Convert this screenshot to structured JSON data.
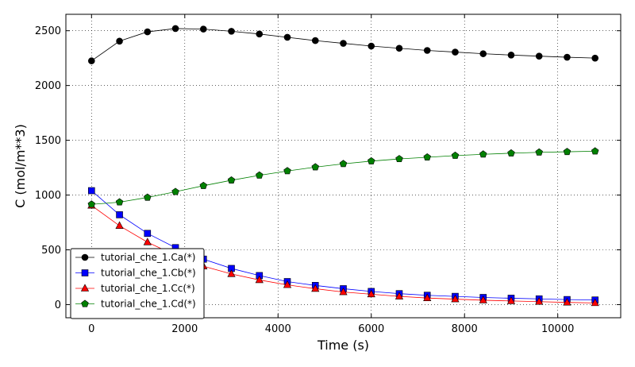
{
  "chart_data": {
    "type": "line",
    "xlabel": "Time (s)",
    "ylabel": "C (mol/m**3)",
    "xlim": [
      -550,
      11350
    ],
    "ylim": [
      -120,
      2650
    ],
    "xticks": [
      0,
      2000,
      4000,
      6000,
      8000,
      10000
    ],
    "yticks": [
      0,
      500,
      1000,
      1500,
      2000,
      2500
    ],
    "grid": true,
    "legend_position": "lower-left",
    "x": [
      0,
      600,
      1200,
      1800,
      2400,
      3000,
      3600,
      4200,
      4800,
      5400,
      6000,
      6600,
      7200,
      7800,
      8400,
      9000,
      9600,
      10200,
      10800
    ],
    "series": [
      {
        "name": "tutorial_che_1.Ca(*)",
        "color": "#000000",
        "marker": "circle",
        "values": [
          2225,
          2405,
          2490,
          2520,
          2515,
          2495,
          2470,
          2440,
          2410,
          2385,
          2360,
          2340,
          2320,
          2305,
          2290,
          2278,
          2268,
          2258,
          2250
        ]
      },
      {
        "name": "tutorial_che_1.Cb(*)",
        "color": "#0000ff",
        "marker": "square",
        "values": [
          1040,
          820,
          650,
          520,
          415,
          330,
          265,
          210,
          175,
          145,
          120,
          100,
          85,
          75,
          65,
          58,
          52,
          46,
          42
        ]
      },
      {
        "name": "tutorial_che_1.Cc(*)",
        "color": "#ff0000",
        "marker": "triangle",
        "values": [
          905,
          720,
          570,
          450,
          350,
          280,
          225,
          180,
          145,
          115,
          95,
          75,
          60,
          50,
          40,
          33,
          27,
          20,
          15
        ]
      },
      {
        "name": "tutorial_che_1.Cd(*)",
        "color": "#008000",
        "marker": "pentagon",
        "values": [
          915,
          935,
          978,
          1030,
          1085,
          1135,
          1180,
          1220,
          1255,
          1285,
          1310,
          1330,
          1345,
          1360,
          1372,
          1382,
          1390,
          1395,
          1400
        ]
      }
    ]
  }
}
